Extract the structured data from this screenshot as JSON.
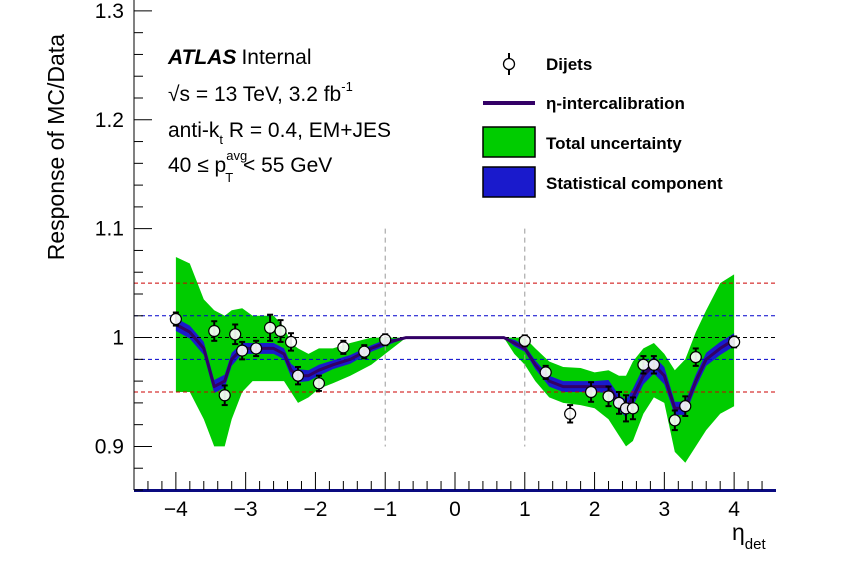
{
  "chart_data": {
    "type": "line",
    "xlabel": "η",
    "xlabel_sub": "det",
    "ylabel": "Response of MC/Data",
    "xlim": [
      -4.6,
      4.6
    ],
    "ylim": [
      0.86,
      1.31
    ],
    "x_ticks": [
      -4,
      -3,
      -2,
      -1,
      0,
      1,
      2,
      3,
      4
    ],
    "x_tick_labels": [
      "−4",
      "−3",
      "−2",
      "−1",
      "0",
      "1",
      "2",
      "3",
      "4"
    ],
    "y_ticks": [
      0.9,
      1.0,
      1.1,
      1.2,
      1.3
    ],
    "y_tick_labels": [
      "0.9",
      "1",
      "1.1",
      "1.2",
      "1.3"
    ],
    "annotations": {
      "atlas": "ATLAS",
      "internal": "Internal",
      "sqrt_s": "√s = 13 TeV, 3.2 fb",
      "lumi_sup": "-1",
      "jet_algo_a": "anti-k",
      "jet_algo_sub": "t",
      "jet_algo_b": " R = 0.4, EM+JES",
      "pt_a": "40 ≤ p",
      "pt_sup": "avg",
      "pt_sub": "T",
      "pt_b": " < 55 GeV"
    },
    "legend": {
      "placement": "top-right",
      "entries": [
        "Dijets",
        "η-intercalibration",
        "Total uncertainty",
        "Statistical component"
      ]
    },
    "colors": {
      "total_uncertainty": "#00cc00",
      "statistical": "#1a1acc",
      "intercalibration": "#330066",
      "ref_red": "#cc0000",
      "ref_blue": "#0000cc",
      "ref_black": "#000000",
      "ref_gray": "#999999"
    },
    "reference_lines": [
      {
        "y": 1.05,
        "color": "red"
      },
      {
        "y": 1.02,
        "color": "blue"
      },
      {
        "y": 1.0,
        "color": "black"
      },
      {
        "y": 0.98,
        "color": "blue"
      },
      {
        "y": 0.95,
        "color": "red"
      }
    ],
    "vertical_lines": [
      -1,
      1
    ],
    "series": [
      {
        "name": "η-intercalibration",
        "x": [
          -4.0,
          -3.8,
          -3.6,
          -3.45,
          -3.3,
          -3.2,
          -3.05,
          -2.9,
          -2.75,
          -2.6,
          -2.45,
          -2.35,
          -2.25,
          -2.1,
          -1.95,
          -1.75,
          -1.5,
          -1.2,
          -1.0,
          -0.7,
          0.0,
          0.7,
          0.85,
          1.0,
          1.15,
          1.35,
          1.55,
          1.8,
          2.0,
          2.2,
          2.35,
          2.45,
          2.55,
          2.7,
          2.85,
          3.0,
          3.15,
          3.3,
          3.45,
          3.6,
          3.8,
          4.0
        ],
        "y": [
          1.012,
          1.005,
          0.99,
          0.955,
          0.96,
          0.98,
          0.99,
          0.99,
          0.99,
          0.99,
          0.985,
          0.97,
          0.965,
          0.965,
          0.97,
          0.975,
          0.98,
          0.99,
          0.995,
          1.0,
          1.0,
          1.0,
          0.995,
          0.99,
          0.975,
          0.96,
          0.955,
          0.955,
          0.955,
          0.955,
          0.94,
          0.935,
          0.945,
          0.965,
          0.975,
          0.965,
          0.935,
          0.935,
          0.96,
          0.98,
          0.99,
          0.998
        ],
        "stat_half_width": [
          0.006,
          0.006,
          0.006,
          0.006,
          0.006,
          0.006,
          0.005,
          0.005,
          0.005,
          0.005,
          0.005,
          0.006,
          0.006,
          0.005,
          0.005,
          0.004,
          0.004,
          0.003,
          0.003,
          0.0,
          0.0,
          0.0,
          0.003,
          0.003,
          0.004,
          0.005,
          0.005,
          0.005,
          0.005,
          0.006,
          0.007,
          0.008,
          0.008,
          0.008,
          0.008,
          0.008,
          0.006,
          0.006,
          0.006,
          0.006,
          0.006,
          0.006
        ],
        "total_up": [
          1.074,
          1.068,
          1.035,
          1.025,
          1.02,
          1.025,
          1.027,
          1.02,
          1.02,
          1.02,
          1.01,
          0.995,
          0.99,
          0.985,
          0.99,
          0.99,
          0.995,
          1.0,
          1.0,
          1.0,
          1.0,
          1.0,
          1.0,
          1.0,
          0.99,
          0.978,
          0.973,
          0.972,
          0.968,
          0.97,
          0.965,
          0.965,
          0.978,
          0.99,
          0.995,
          0.985,
          0.97,
          0.98,
          1.005,
          1.025,
          1.05,
          1.058
        ],
        "total_down": [
          0.95,
          0.95,
          0.925,
          0.9,
          0.9,
          0.925,
          0.95,
          0.96,
          0.96,
          0.96,
          0.96,
          0.95,
          0.94,
          0.945,
          0.953,
          0.958,
          0.965,
          0.975,
          0.985,
          1.0,
          1.0,
          1.0,
          0.985,
          0.975,
          0.96,
          0.945,
          0.94,
          0.938,
          0.935,
          0.925,
          0.91,
          0.9,
          0.905,
          0.93,
          0.945,
          0.94,
          0.895,
          0.885,
          0.9,
          0.915,
          0.93,
          0.937
        ]
      },
      {
        "name": "Dijets",
        "x": [
          -4.0,
          -3.45,
          -3.3,
          -3.15,
          -3.05,
          -2.85,
          -2.65,
          -2.5,
          -2.35,
          -2.25,
          -1.95,
          -1.6,
          -1.3,
          -1.0,
          1.0,
          1.3,
          1.65,
          1.95,
          2.2,
          2.35,
          2.45,
          2.55,
          2.7,
          2.85,
          3.15,
          3.3,
          3.45,
          4.0
        ],
        "y": [
          1.017,
          1.006,
          0.947,
          1.003,
          0.988,
          0.99,
          1.009,
          1.006,
          0.996,
          0.965,
          0.958,
          0.991,
          0.987,
          0.998,
          0.997,
          0.968,
          0.93,
          0.95,
          0.946,
          0.94,
          0.935,
          0.935,
          0.975,
          0.975,
          0.924,
          0.937,
          0.982,
          0.996
        ],
        "y_err": [
          0.006,
          0.009,
          0.009,
          0.009,
          0.008,
          0.007,
          0.012,
          0.01,
          0.008,
          0.008,
          0.007,
          0.006,
          0.006,
          0.005,
          0.005,
          0.006,
          0.008,
          0.009,
          0.009,
          0.01,
          0.012,
          0.01,
          0.008,
          0.008,
          0.009,
          0.009,
          0.008,
          0.005
        ]
      }
    ]
  }
}
